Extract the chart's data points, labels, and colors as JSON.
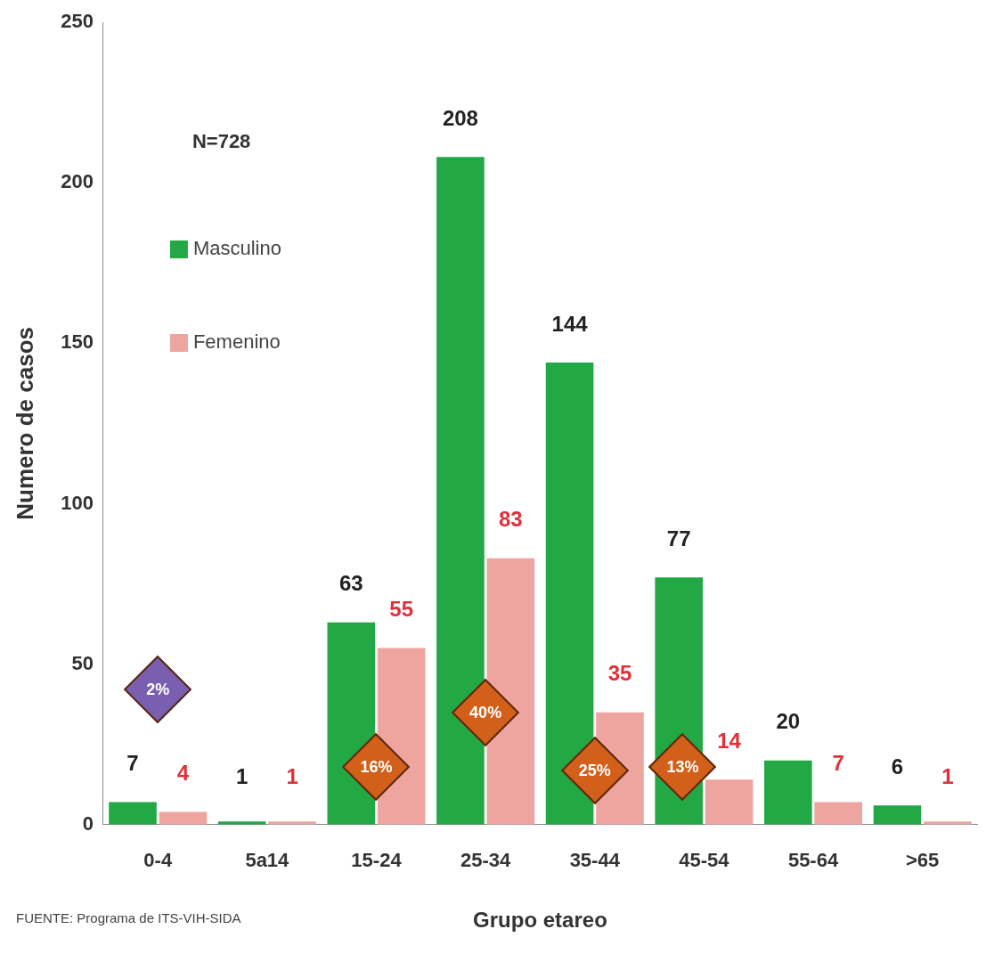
{
  "chart_data": {
    "type": "bar",
    "xlabel": "Grupo etareo",
    "ylabel": "Numero de casos",
    "categories": [
      "0-4",
      "5a14",
      "15-24",
      "25-34",
      "35-44",
      "45-54",
      "55-64",
      ">65"
    ],
    "series": [
      {
        "name": "Masculino",
        "color": "#22a845",
        "values": [
          7,
          1,
          63,
          208,
          144,
          77,
          20,
          6
        ]
      },
      {
        "name": "Femenino",
        "color": "#eea5a0",
        "values": [
          4,
          1,
          55,
          83,
          35,
          14,
          7,
          1
        ]
      }
    ],
    "ylim": [
      0,
      250
    ],
    "yticks": [
      0,
      50,
      100,
      150,
      200,
      250
    ],
    "grid": false,
    "legend": "top left",
    "data_labels": true,
    "annotations": [
      "N=728",
      "2%",
      "16%",
      "40%",
      "25%",
      "13%",
      "FUENTE: Programa de ITS-VIH-SIDA"
    ]
  }
}
